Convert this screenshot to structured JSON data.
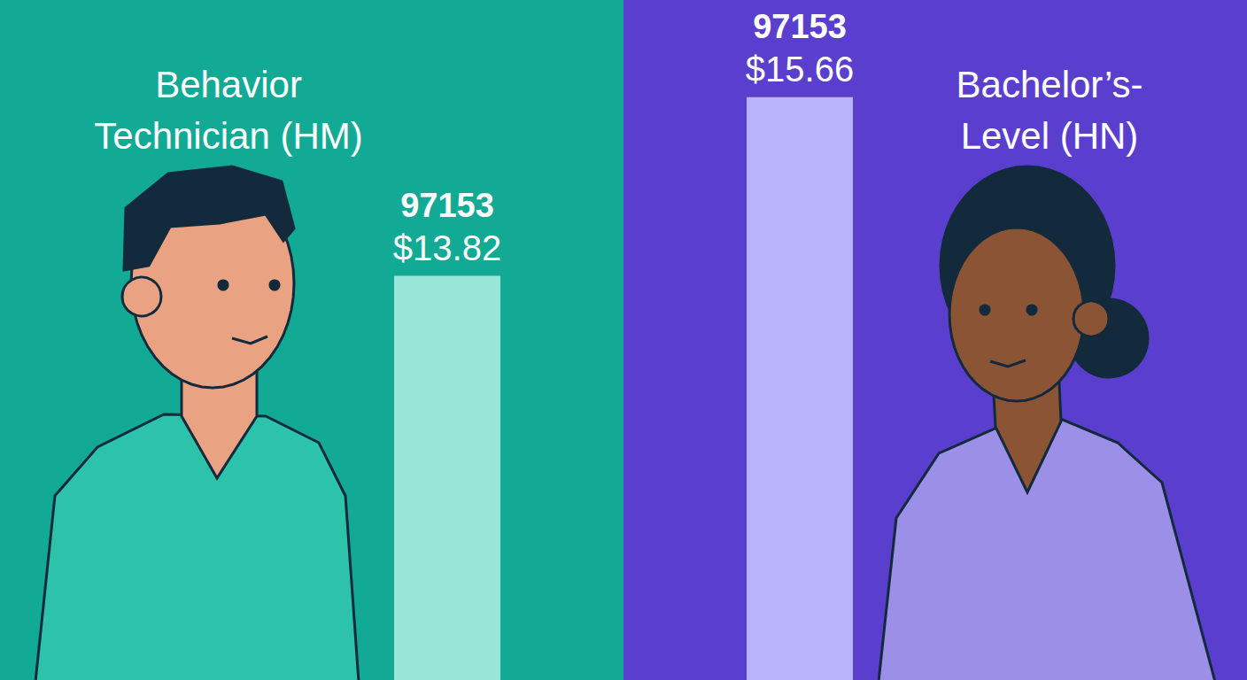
{
  "chart_data": {
    "type": "bar",
    "categories": [
      "Behavior Technician (HM)",
      "Bachelor’s-Level (HN)"
    ],
    "values": [
      13.82,
      15.66
    ],
    "value_labels": [
      "$13.82",
      "$15.66"
    ],
    "bar_codes": [
      "97153",
      "97153"
    ],
    "colors": [
      "#99e6d9",
      "#b8b3fb"
    ],
    "ylim": [
      9.66,
      16.66
    ],
    "data_labels": true,
    "tick_labels": false,
    "grid": false
  }
}
